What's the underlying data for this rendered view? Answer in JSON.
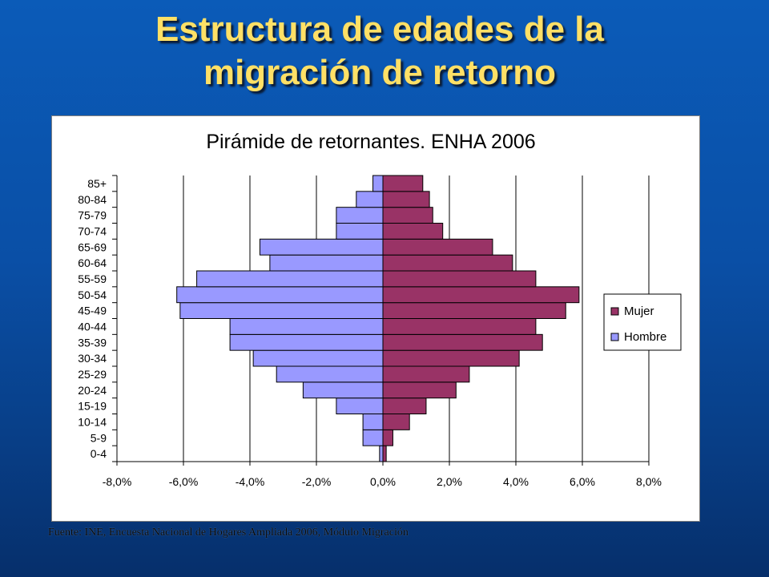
{
  "slide": {
    "title_line1": "Estructura de edades de la",
    "title_line2": "migración de retorno",
    "source": "Fuente: INE, Encuesta Nacional de Hogares Ampliada 2006, Módulo Migración"
  },
  "colors": {
    "mujer": "#993366",
    "hombre": "#9999ff",
    "title": "#ffe066"
  },
  "chart_data": {
    "type": "bar",
    "orientation": "horizontal",
    "title": "Pirámide de retornantes. ENHA 2006",
    "categories": [
      "0-4",
      "5-9",
      "10-14",
      "15-19",
      "20-24",
      "25-29",
      "30-34",
      "35-39",
      "40-44",
      "45-49",
      "50-54",
      "55-59",
      "60-64",
      "65-69",
      "70-74",
      "75-79",
      "80-84",
      "85+"
    ],
    "series": [
      {
        "name": "Mujer",
        "values": [
          0.1,
          0.3,
          0.8,
          1.3,
          2.2,
          2.6,
          4.1,
          4.8,
          4.6,
          5.5,
          5.9,
          4.6,
          3.9,
          3.3,
          1.8,
          1.5,
          1.4,
          1.2
        ]
      },
      {
        "name": "Hombre",
        "values": [
          -0.1,
          -0.6,
          -0.6,
          -1.4,
          -2.4,
          -3.2,
          -3.9,
          -4.6,
          -4.6,
          -6.1,
          -6.2,
          -5.6,
          -3.4,
          -3.7,
          -1.4,
          -1.4,
          -0.8,
          -0.3
        ]
      }
    ],
    "x_ticks": [
      "-8,0%",
      "-6,0%",
      "-4,0%",
      "-2,0%",
      "0,0%",
      "2,0%",
      "4,0%",
      "6,0%",
      "8,0%"
    ],
    "xlim": [
      -8,
      8
    ],
    "grid": "vertical",
    "legend": "right",
    "xlabel": "",
    "ylabel": ""
  }
}
